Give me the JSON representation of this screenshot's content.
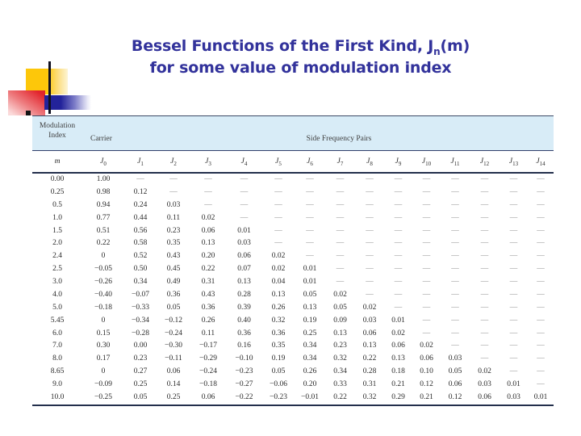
{
  "slide": {
    "title": {
      "line1_pre": "Bessel Functions of the First Kind, J",
      "line1_sub": "n",
      "line1_post": "(m)",
      "line2": "for some value of modulation index"
    }
  },
  "colors": {
    "title_text": "#32329b",
    "table_header_band": "#d8ecf7",
    "table_border": "#232f4c",
    "decor_yellow": "#fdc70a",
    "decor_red": "#e2242c",
    "decor_blue": "#23239a"
  },
  "decor_icons": [
    "yellow-square",
    "red-square",
    "blue-bar",
    "vertical-line",
    "bullet-square"
  ],
  "table": {
    "header": {
      "modulation": "Modulation",
      "index": "Index",
      "carrier": "Carrier",
      "side_frequency_pairs": "Side Frequency Pairs"
    },
    "columns": [
      {
        "label": "m",
        "sub": ""
      },
      {
        "label": "J",
        "sub": "0"
      },
      {
        "label": "J",
        "sub": "1"
      },
      {
        "label": "J",
        "sub": "2"
      },
      {
        "label": "J",
        "sub": "3"
      },
      {
        "label": "J",
        "sub": "4"
      },
      {
        "label": "J",
        "sub": "5"
      },
      {
        "label": "J",
        "sub": "6"
      },
      {
        "label": "J",
        "sub": "7"
      },
      {
        "label": "J",
        "sub": "8"
      },
      {
        "label": "J",
        "sub": "9"
      },
      {
        "label": "J",
        "sub": "10"
      },
      {
        "label": "J",
        "sub": "11"
      },
      {
        "label": "J",
        "sub": "12"
      },
      {
        "label": "J",
        "sub": "13"
      },
      {
        "label": "J",
        "sub": "14"
      }
    ],
    "rows": [
      [
        "0.00",
        "1.00",
        "—",
        "—",
        "—",
        "—",
        "—",
        "—",
        "—",
        "—",
        "—",
        "—",
        "—",
        "—",
        "—",
        "—"
      ],
      [
        "0.25",
        "0.98",
        "0.12",
        "—",
        "—",
        "—",
        "—",
        "—",
        "—",
        "—",
        "—",
        "—",
        "—",
        "—",
        "—",
        "—"
      ],
      [
        "0.5",
        "0.94",
        "0.24",
        "0.03",
        "—",
        "—",
        "—",
        "—",
        "—",
        "—",
        "—",
        "—",
        "—",
        "—",
        "—",
        "—"
      ],
      [
        "1.0",
        "0.77",
        "0.44",
        "0.11",
        "0.02",
        "—",
        "—",
        "—",
        "—",
        "—",
        "—",
        "—",
        "—",
        "—",
        "—",
        "—"
      ],
      [
        "1.5",
        "0.51",
        "0.56",
        "0.23",
        "0.06",
        "0.01",
        "—",
        "—",
        "—",
        "—",
        "—",
        "—",
        "—",
        "—",
        "—",
        "—"
      ],
      [
        "2.0",
        "0.22",
        "0.58",
        "0.35",
        "0.13",
        "0.03",
        "—",
        "—",
        "—",
        "—",
        "—",
        "—",
        "—",
        "—",
        "—",
        "—"
      ],
      [
        "2.4",
        "0",
        "0.52",
        "0.43",
        "0.20",
        "0.06",
        "0.02",
        "—",
        "—",
        "—",
        "—",
        "—",
        "—",
        "—",
        "—",
        "—"
      ],
      [
        "2.5",
        "−0.05",
        "0.50",
        "0.45",
        "0.22",
        "0.07",
        "0.02",
        "0.01",
        "—",
        "—",
        "—",
        "—",
        "—",
        "—",
        "—",
        "—"
      ],
      [
        "3.0",
        "−0.26",
        "0.34",
        "0.49",
        "0.31",
        "0.13",
        "0.04",
        "0.01",
        "—",
        "—",
        "—",
        "—",
        "—",
        "—",
        "—",
        "—"
      ],
      [
        "4.0",
        "−0.40",
        "−0.07",
        "0.36",
        "0.43",
        "0.28",
        "0.13",
        "0.05",
        "0.02",
        "—",
        "—",
        "—",
        "—",
        "—",
        "—",
        "—"
      ],
      [
        "5.0",
        "−0.18",
        "−0.33",
        "0.05",
        "0.36",
        "0.39",
        "0.26",
        "0.13",
        "0.05",
        "0.02",
        "—",
        "—",
        "—",
        "—",
        "—",
        "—"
      ],
      [
        "5.45",
        "0",
        "−0.34",
        "−0.12",
        "0.26",
        "0.40",
        "0.32",
        "0.19",
        "0.09",
        "0.03",
        "0.01",
        "—",
        "—",
        "—",
        "—",
        "—"
      ],
      [
        "6.0",
        "0.15",
        "−0.28",
        "−0.24",
        "0.11",
        "0.36",
        "0.36",
        "0.25",
        "0.13",
        "0.06",
        "0.02",
        "—",
        "—",
        "—",
        "—",
        "—"
      ],
      [
        "7.0",
        "0.30",
        "0.00",
        "−0.30",
        "−0.17",
        "0.16",
        "0.35",
        "0.34",
        "0.23",
        "0.13",
        "0.06",
        "0.02",
        "—",
        "—",
        "—",
        "—"
      ],
      [
        "8.0",
        "0.17",
        "0.23",
        "−0.11",
        "−0.29",
        "−0.10",
        "0.19",
        "0.34",
        "0.32",
        "0.22",
        "0.13",
        "0.06",
        "0.03",
        "—",
        "—",
        "—"
      ],
      [
        "8.65",
        "0",
        "0.27",
        "0.06",
        "−0.24",
        "−0.23",
        "0.05",
        "0.26",
        "0.34",
        "0.28",
        "0.18",
        "0.10",
        "0.05",
        "0.02",
        "—",
        "—"
      ],
      [
        "9.0",
        "−0.09",
        "0.25",
        "0.14",
        "−0.18",
        "−0.27",
        "−0.06",
        "0.20",
        "0.33",
        "0.31",
        "0.21",
        "0.12",
        "0.06",
        "0.03",
        "0.01",
        "—"
      ],
      [
        "10.0",
        "−0.25",
        "0.05",
        "0.25",
        "0.06",
        "−0.22",
        "−0.23",
        "−0.01",
        "0.22",
        "0.32",
        "0.29",
        "0.21",
        "0.12",
        "0.06",
        "0.03",
        "0.01"
      ]
    ]
  }
}
